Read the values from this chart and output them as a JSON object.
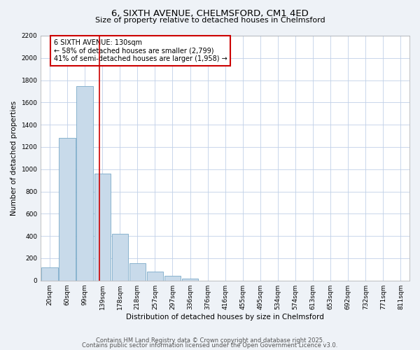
{
  "title1": "6, SIXTH AVENUE, CHELMSFORD, CM1 4ED",
  "title2": "Size of property relative to detached houses in Chelmsford",
  "xlabel": "Distribution of detached houses by size in Chelmsford",
  "ylabel": "Number of detached properties",
  "categories": [
    "20sqm",
    "60sqm",
    "99sqm",
    "139sqm",
    "178sqm",
    "218sqm",
    "257sqm",
    "297sqm",
    "336sqm",
    "376sqm",
    "416sqm",
    "455sqm",
    "495sqm",
    "534sqm",
    "574sqm",
    "613sqm",
    "653sqm",
    "692sqm",
    "732sqm",
    "771sqm",
    "811sqm"
  ],
  "values": [
    120,
    1280,
    1750,
    960,
    420,
    155,
    80,
    40,
    20,
    0,
    0,
    0,
    0,
    0,
    0,
    0,
    0,
    0,
    0,
    0,
    0
  ],
  "bar_color": "#c8daea",
  "bar_edge_color": "#7aaac8",
  "ylim": [
    0,
    2200
  ],
  "yticks": [
    0,
    200,
    400,
    600,
    800,
    1000,
    1200,
    1400,
    1600,
    1800,
    2000,
    2200
  ],
  "vline_x": 2.82,
  "vline_color": "#cc0000",
  "annotation_text": "6 SIXTH AVENUE: 130sqm\n← 58% of detached houses are smaller (2,799)\n41% of semi-detached houses are larger (1,958) →",
  "annotation_box_color": "#ffffff",
  "annotation_box_edge_color": "#cc0000",
  "footer1": "Contains HM Land Registry data © Crown copyright and database right 2025.",
  "footer2": "Contains public sector information licensed under the Open Government Licence v3.0.",
  "bg_color": "#eef2f7",
  "plot_bg_color": "#ffffff",
  "grid_color": "#c0d0e8",
  "title1_fontsize": 9.5,
  "title2_fontsize": 8.0,
  "tick_fontsize": 6.5,
  "axis_label_fontsize": 7.5,
  "annotation_fontsize": 7.0,
  "footer_fontsize": 6.0
}
